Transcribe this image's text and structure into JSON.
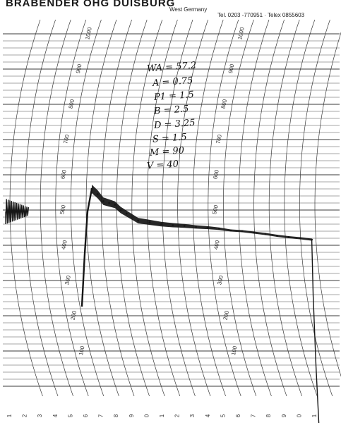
{
  "header": {
    "brand": "BRABENDER  OHG  DUISBURG",
    "country": "West Germany",
    "contact": "Tel. 0203 -770951 · Telex 0855603"
  },
  "notes": [
    "WA = 57.2",
    "A = 0.75",
    "P1 = 1.5",
    "B = 2.5",
    "D = 3.25",
    "S = 1.5",
    "M = 90",
    "V = 40"
  ],
  "chart_data": {
    "type": "line",
    "title": "",
    "xlabel": "",
    "ylabel": "",
    "ylim": [
      0,
      1000
    ],
    "y_scale_labels": [
      "100",
      "200",
      "300",
      "400",
      "500",
      "600",
      "700",
      "800",
      "900",
      "1000"
    ],
    "x_tick_labels": [
      "1",
      "2",
      "3",
      "4",
      "5",
      "6",
      "7",
      "8",
      "9",
      "0",
      "1",
      "2",
      "3",
      "4",
      "5",
      "6",
      "7",
      "8",
      "9",
      "0",
      "1"
    ],
    "x": [
      0,
      0.5,
      1,
      1.5,
      2,
      2.5,
      3,
      4,
      5,
      6,
      7,
      8,
      9,
      10,
      11,
      12,
      13,
      14,
      15,
      16,
      17,
      18,
      19
    ],
    "series": [
      {
        "values": [
          560,
          545,
          525,
          520,
          515,
          500,
          490,
          470,
          465,
          460,
          457,
          455,
          452,
          450,
          447,
          442,
          440,
          436,
          432,
          427,
          423,
          420,
          416
        ]
      }
    ],
    "grid": true,
    "colors": {
      "trace": "#161616",
      "grid": "#3a3a3a",
      "paper": "#ffffff"
    }
  }
}
